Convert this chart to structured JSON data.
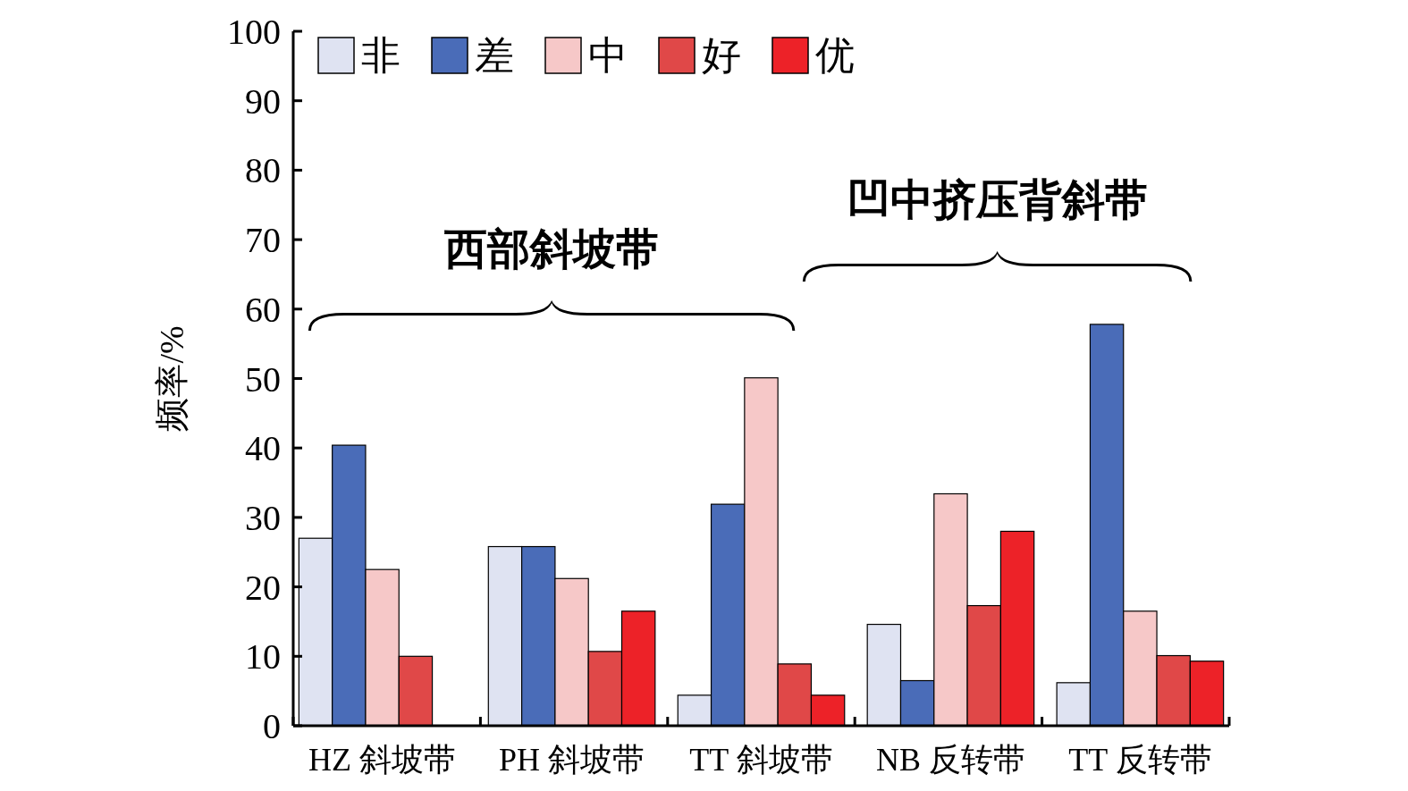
{
  "chart_data": {
    "type": "bar",
    "ylabel": "频率/%",
    "categories": [
      "HZ 斜坡带",
      "PH 斜坡带",
      "TT 斜坡带",
      "NB 反转带",
      "TT 反转带"
    ],
    "series": [
      {
        "name": "非",
        "color": "#dfe3f2",
        "values": [
          27,
          25.8,
          4.4,
          14.6,
          6.2
        ]
      },
      {
        "name": "差",
        "color": "#4a6cb8",
        "values": [
          40.4,
          25.8,
          31.9,
          6.5,
          57.8
        ]
      },
      {
        "name": "中",
        "color": "#f6c8c8",
        "values": [
          22.5,
          21.2,
          50.1,
          33.4,
          16.5
        ]
      },
      {
        "name": "好",
        "color": "#e04848",
        "values": [
          10,
          10.7,
          8.9,
          17.3,
          10.1
        ]
      },
      {
        "name": "优",
        "color": "#ed2228",
        "values": [
          0,
          16.5,
          4.4,
          28,
          9.3
        ]
      }
    ],
    "ylim": [
      0,
      100
    ],
    "yticks": [
      0,
      10,
      20,
      30,
      40,
      50,
      60,
      70,
      80,
      90,
      100
    ],
    "grid": false,
    "legend": "top left",
    "annotations": [
      "西部斜坡带",
      "凹中挤压背斜带"
    ]
  }
}
